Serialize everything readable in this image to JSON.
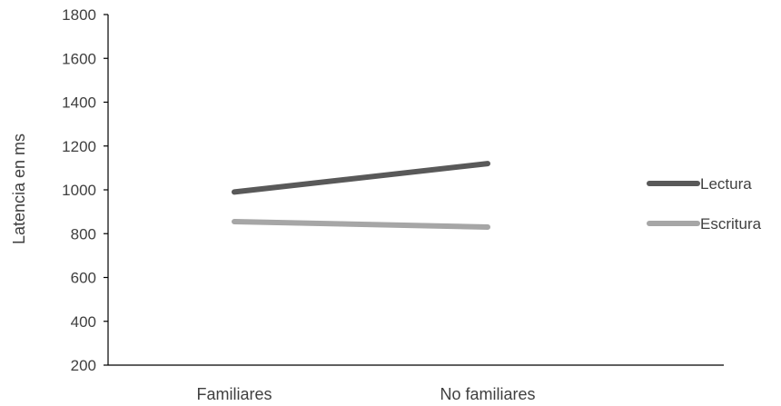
{
  "chart_data": {
    "type": "line",
    "title": "",
    "xlabel": "",
    "ylabel": "Latencia en ms",
    "categories": [
      "Familiares",
      "No familiares"
    ],
    "ylim": [
      200,
      1800
    ],
    "yticks": [
      200,
      400,
      600,
      800,
      1000,
      1200,
      1400,
      1600,
      1800
    ],
    "grid": false,
    "legend_position": "right",
    "series": [
      {
        "name": "Lectura",
        "values": [
          990,
          1120
        ],
        "color": "#595959"
      },
      {
        "name": "Escritura",
        "values": [
          855,
          830
        ],
        "color": "#a6a6a6"
      }
    ]
  }
}
